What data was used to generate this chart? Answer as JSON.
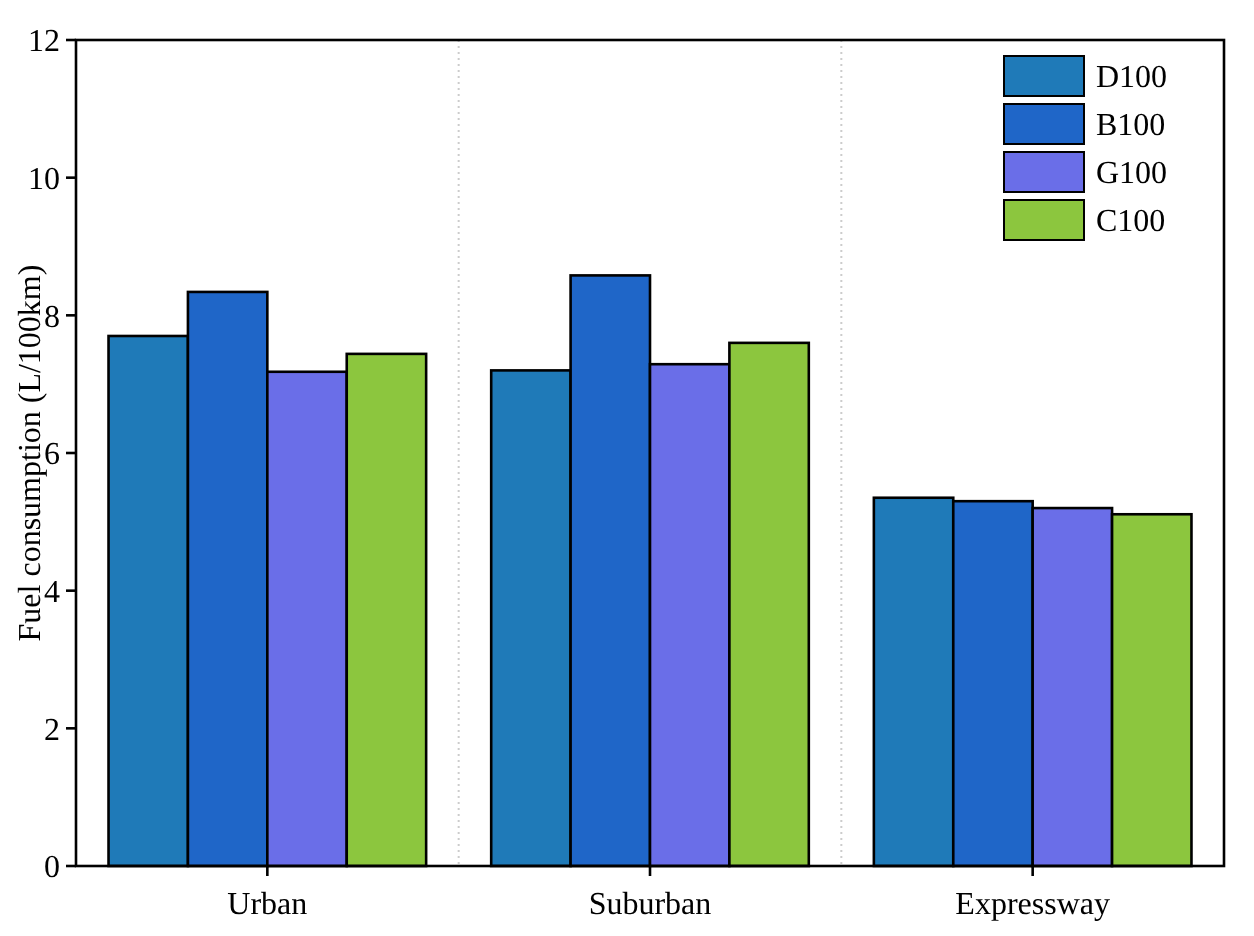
{
  "chart_data": {
    "type": "bar",
    "ylabel": "Fuel consumption (L/100km)",
    "categories": [
      "Urban",
      "Suburban",
      "Expressway"
    ],
    "series": [
      {
        "name": "D100",
        "color": "#1f7ab8",
        "values": [
          7.7,
          7.2,
          5.35
        ]
      },
      {
        "name": "B100",
        "color": "#1f66c8",
        "values": [
          8.34,
          8.58,
          5.3
        ]
      },
      {
        "name": "G100",
        "color": "#6a6ee8",
        "values": [
          7.18,
          7.29,
          5.2
        ]
      },
      {
        "name": "C100",
        "color": "#8cc63e",
        "values": [
          7.44,
          7.6,
          5.11
        ]
      }
    ],
    "ylim": [
      0,
      12
    ],
    "yticks": [
      0,
      2,
      4,
      6,
      8,
      10,
      12
    ],
    "grid": "x",
    "legend": "top right"
  }
}
